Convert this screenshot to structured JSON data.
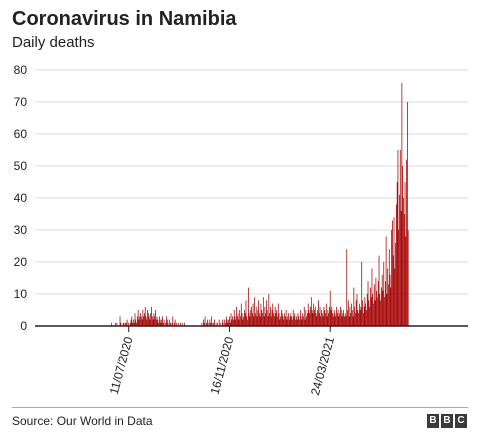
{
  "title": "Coronavirus in Namibia",
  "subtitle": "Daily deaths",
  "source": "Source: Our World in Data",
  "logo": [
    "B",
    "B",
    "C"
  ],
  "colors": {
    "bar": "#a50000",
    "axis": "#222222",
    "grid": "#dddddd",
    "text": "#222222"
  },
  "chart_data": {
    "type": "bar",
    "title": "Coronavirus in Namibia",
    "subtitle": "Daily deaths",
    "xlabel": "",
    "ylabel": "",
    "ylim": [
      0,
      80
    ],
    "yticks": [
      0,
      10,
      20,
      30,
      40,
      50,
      60,
      70,
      80
    ],
    "xlim": [
      "2020-03-14",
      "2021-09-15"
    ],
    "xtick_labels": [
      {
        "date": "2020-07-11",
        "label": "11/07/2020"
      },
      {
        "date": "2020-11-16",
        "label": "16/11/2020"
      },
      {
        "date": "2021-03-24",
        "label": "24/03/2021"
      }
    ],
    "grid": true,
    "series": [
      {
        "start_date": "2020-06-13",
        "values": [
          0,
          0,
          0,
          0,
          0,
          0,
          1,
          0,
          0,
          0,
          0,
          1,
          0,
          1,
          0,
          0,
          0,
          3,
          1,
          0,
          0,
          1,
          1,
          0,
          1,
          1,
          2,
          0,
          1,
          0,
          1,
          2,
          3,
          1,
          2,
          1,
          4,
          2,
          1,
          3,
          5,
          2,
          3,
          4,
          3,
          2,
          5,
          3,
          4,
          6,
          3,
          2,
          5,
          4,
          3,
          2,
          4,
          6,
          3,
          2,
          4,
          3,
          5,
          2,
          3,
          2,
          1,
          3,
          2,
          1,
          2,
          3,
          1,
          2,
          0,
          1,
          3,
          2,
          1,
          0,
          2,
          1,
          0,
          1,
          3,
          0,
          1,
          2,
          0,
          1,
          0,
          1,
          0,
          0,
          1,
          0,
          1,
          0,
          0,
          1,
          0,
          0,
          0,
          0,
          0,
          0,
          0,
          0,
          0,
          0,
          0,
          0,
          0,
          0,
          0,
          0,
          0,
          0,
          0,
          0,
          0,
          1,
          0,
          2,
          1,
          3,
          0,
          1,
          2,
          1,
          0,
          2,
          1,
          3,
          1,
          0,
          1,
          2,
          0,
          1,
          0,
          1,
          0,
          2,
          0,
          1,
          0,
          2,
          1,
          0,
          2,
          1,
          3,
          2,
          1,
          2,
          3,
          1,
          4,
          2,
          3,
          2,
          5,
          3,
          2,
          6,
          3,
          4,
          2,
          5,
          3,
          7,
          4,
          2,
          3,
          5,
          4,
          8,
          3,
          2,
          12,
          4,
          3,
          5,
          6,
          4,
          7,
          3,
          9,
          4,
          6,
          3,
          5,
          8,
          4,
          3,
          7,
          5,
          4,
          9,
          3,
          6,
          4,
          8,
          5,
          3,
          10,
          4,
          6,
          3,
          5,
          7,
          4,
          3,
          6,
          4,
          5,
          3,
          7,
          4,
          2,
          3,
          5,
          4,
          3,
          2,
          4,
          3,
          5,
          2,
          3,
          4,
          2,
          3,
          4,
          3,
          2,
          5,
          3,
          4,
          2,
          3,
          2,
          4,
          3,
          2,
          5,
          3,
          2,
          4,
          3,
          6,
          2,
          5,
          3,
          4,
          7,
          5,
          4,
          6,
          9,
          5,
          4,
          7,
          5,
          6,
          4,
          3,
          5,
          8,
          4,
          6,
          3,
          5,
          4,
          3,
          6,
          5,
          4,
          7,
          3,
          5,
          4,
          6,
          11,
          5,
          6,
          4,
          3,
          5,
          4,
          3,
          6,
          4,
          5,
          3,
          4,
          6,
          5,
          3,
          4,
          5,
          3,
          4,
          3,
          24,
          5,
          8,
          3,
          6,
          4,
          7,
          5,
          3,
          12,
          6,
          4,
          8,
          10,
          5,
          4,
          7,
          5,
          6,
          20,
          8,
          4,
          6,
          9,
          7,
          5,
          10,
          14,
          8,
          6,
          12,
          9,
          18,
          10,
          7,
          13,
          8,
          15,
          11,
          9,
          14,
          22,
          10,
          8,
          12,
          16,
          11,
          20,
          9,
          14,
          28,
          10,
          18,
          13,
          24,
          16,
          12,
          30,
          33,
          22,
          34,
          18,
          26,
          38,
          45,
          55,
          30,
          41,
          55,
          36,
          76,
          50,
          40,
          35,
          45,
          28,
          52,
          70,
          30
        ]
      }
    ]
  }
}
